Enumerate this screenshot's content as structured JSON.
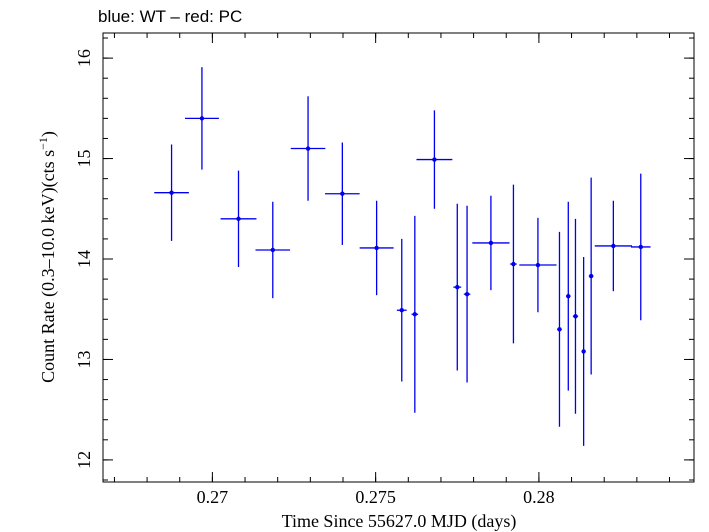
{
  "chart_data": {
    "type": "scatter",
    "title": "blue: WT – red: PC",
    "xlabel": "Time Since 55627.0 MJD (days)",
    "ylabel": "Count Rate (0.3–10.0 keV)(cts s",
    "ylabel_sup": "−1",
    "ylabel_tail": ")",
    "xlim": [
      0.26665,
      0.28475
    ],
    "ylim": [
      11.78,
      16.25
    ],
    "x_ticks": [
      {
        "value": 0.27,
        "label": "0.27"
      },
      {
        "value": 0.275,
        "label": "0.275"
      },
      {
        "value": 0.28,
        "label": "0.28"
      }
    ],
    "y_ticks": [
      {
        "value": 12,
        "label": "12"
      },
      {
        "value": 13,
        "label": "13"
      },
      {
        "value": 14,
        "label": "14"
      },
      {
        "value": 15,
        "label": "15"
      },
      {
        "value": 16,
        "label": "16"
      }
    ],
    "x_minor_step": 0.001,
    "y_minor_step": 0.2,
    "series": [
      {
        "color": "#0000ee",
        "points": [
          {
            "x": 0.26875,
            "xerr": 0.00053,
            "y": 14.66,
            "yerr": 0.48
          },
          {
            "x": 0.26968,
            "xerr": 0.00052,
            "y": 15.4,
            "yerr": 0.51
          },
          {
            "x": 0.2708,
            "xerr": 0.00055,
            "y": 14.4,
            "yerr": 0.48
          },
          {
            "x": 0.27185,
            "xerr": 0.00053,
            "y": 14.09,
            "yerr": 0.48
          },
          {
            "x": 0.27293,
            "xerr": 0.00053,
            "y": 15.1,
            "yerr": 0.52
          },
          {
            "x": 0.27398,
            "xerr": 0.00053,
            "y": 14.65,
            "yerr": 0.51
          },
          {
            "x": 0.27503,
            "xerr": 0.00052,
            "y": 14.11,
            "yerr": 0.47
          },
          {
            "x": 0.2758,
            "xerr": 0.00015,
            "y": 13.49,
            "yerr": 0.71
          },
          {
            "x": 0.2762,
            "xerr": 0.0001,
            "y": 13.45,
            "yerr": 0.98
          },
          {
            "x": 0.2768,
            "xerr": 0.00055,
            "y": 14.99,
            "yerr": 0.49
          },
          {
            "x": 0.2775,
            "xerr": 0.00012,
            "y": 13.72,
            "yerr": 0.83
          },
          {
            "x": 0.2778,
            "xerr": 0.0001,
            "y": 13.65,
            "yerr": 0.88
          },
          {
            "x": 0.27853,
            "xerr": 0.00057,
            "y": 14.16,
            "yerr": 0.47
          },
          {
            "x": 0.27922,
            "xerr": 0.0001,
            "y": 13.95,
            "yerr": 0.79
          },
          {
            "x": 0.27997,
            "xerr": 0.00057,
            "y": 13.94,
            "yerr": 0.47
          },
          {
            "x": 0.28063,
            "xerr": 7e-05,
            "y": 13.3,
            "yerr": 0.97
          },
          {
            "x": 0.2809,
            "xerr": 7e-05,
            "y": 13.63,
            "yerr": 0.94
          },
          {
            "x": 0.28112,
            "xerr": 8e-05,
            "y": 13.43,
            "yerr": 0.97
          },
          {
            "x": 0.28137,
            "xerr": 6e-05,
            "y": 13.08,
            "yerr": 0.94
          },
          {
            "x": 0.2816,
            "xerr": 7e-05,
            "y": 13.83,
            "yerr": 0.98
          },
          {
            "x": 0.28228,
            "xerr": 0.00057,
            "y": 14.13,
            "yerr": 0.45
          },
          {
            "x": 0.28312,
            "xerr": 0.0003,
            "y": 14.12,
            "yerr": 0.73
          }
        ]
      }
    ]
  }
}
